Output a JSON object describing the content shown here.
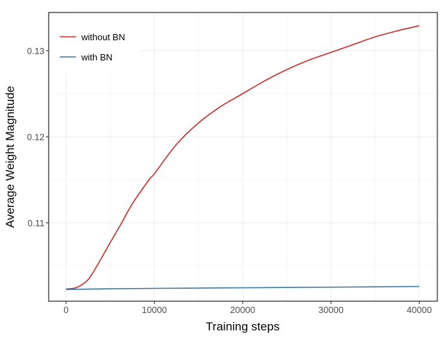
{
  "chart_data": {
    "type": "line",
    "title": "",
    "xlabel": "Training steps",
    "ylabel": "Average Weight Magnitude",
    "xlim": [
      -2000,
      42000
    ],
    "ylim": [
      0.1008,
      0.1343
    ],
    "x_ticks": [
      0,
      10000,
      20000,
      30000,
      40000
    ],
    "x_tick_labels": [
      "0",
      "10000",
      "20000",
      "30000",
      "40000"
    ],
    "y_ticks": [
      0.11,
      0.12,
      0.13
    ],
    "y_tick_labels": [
      "0.11",
      "0.12",
      "0.13"
    ],
    "grid": true,
    "legend_position": "top-left inside",
    "series": [
      {
        "name": "without BN",
        "color": "#cc2a2a",
        "x": [
          0,
          1250,
          2500,
          3500,
          5000,
          6300,
          7500,
          9400,
          10000,
          12500,
          15000,
          17500,
          20000,
          22500,
          25000,
          27500,
          30000,
          32500,
          35000,
          37500,
          40000
        ],
        "y": [
          0.1023,
          0.1025,
          0.1034,
          0.105,
          0.1077,
          0.11,
          0.1122,
          0.115,
          0.1157,
          0.1191,
          0.1216,
          0.1235,
          0.125,
          0.1265,
          0.1278,
          0.1289,
          0.1298,
          0.1307,
          0.1316,
          0.1323,
          0.1329
        ]
      },
      {
        "name": "with BN",
        "color": "#3a78a8",
        "x": [
          0,
          5000,
          10000,
          20000,
          30000,
          40000
        ],
        "y": [
          0.10225,
          0.10233,
          0.10238,
          0.10245,
          0.10252,
          0.1026
        ]
      }
    ]
  }
}
